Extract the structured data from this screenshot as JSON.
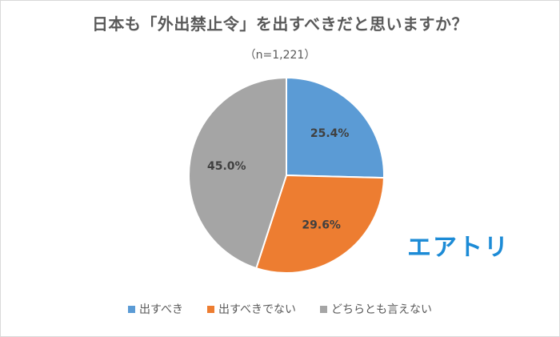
{
  "chart_data": {
    "type": "pie",
    "title": "日本も「外出禁止令」を出すべきだと思いますか？",
    "subtitle": "（n=1,221）",
    "slices": [
      {
        "label": "出すべき",
        "value": 25.4,
        "display": "25.4%",
        "color": "#5b9bd5"
      },
      {
        "label": "出すべきでない",
        "value": 29.6,
        "display": "29.6%",
        "color": "#ed7d31"
      },
      {
        "label": "どちらとも言えない",
        "value": 45.0,
        "display": "45.0%",
        "color": "#a5a5a5"
      }
    ],
    "legend_position": "bottom"
  },
  "brand": {
    "logo_text": "エアトリ"
  }
}
